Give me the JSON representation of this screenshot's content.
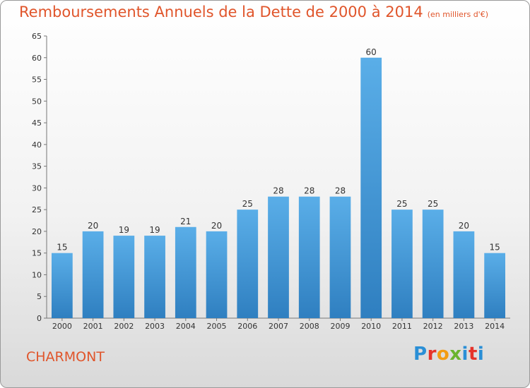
{
  "header": {
    "title": "Remboursements Annuels de la Dette de 2000 à 2014",
    "subtitle": "(en milliers d'€)"
  },
  "footer": {
    "commune": "CHARMONT",
    "logo_letters": [
      "P",
      "r",
      "o",
      "x",
      "i",
      "t",
      "i"
    ],
    "logo_colors": [
      "#2a8fd6",
      "#e6332a",
      "#f39c12",
      "#6ab42d",
      "#2a8fd6",
      "#e6332a",
      "#2a8fd6"
    ]
  },
  "colors": {
    "bar_top": "#5aaee8",
    "bar_bottom": "#2f7fc0",
    "title": "#e0552b"
  },
  "chart_data": {
    "type": "bar",
    "categories": [
      "2000",
      "2001",
      "2002",
      "2003",
      "2004",
      "2005",
      "2006",
      "2007",
      "2008",
      "2009",
      "2010",
      "2011",
      "2012",
      "2013",
      "2014"
    ],
    "values": [
      15,
      20,
      19,
      19,
      21,
      20,
      25,
      28,
      28,
      28,
      60,
      25,
      25,
      20,
      15
    ],
    "title": "Remboursements Annuels de la Dette de 2000 à 2014",
    "ylim": [
      0,
      65
    ],
    "yticks": [
      0,
      5,
      10,
      15,
      20,
      25,
      30,
      35,
      40,
      45,
      50,
      55,
      60,
      65
    ],
    "grid": false,
    "data_labels": true
  }
}
